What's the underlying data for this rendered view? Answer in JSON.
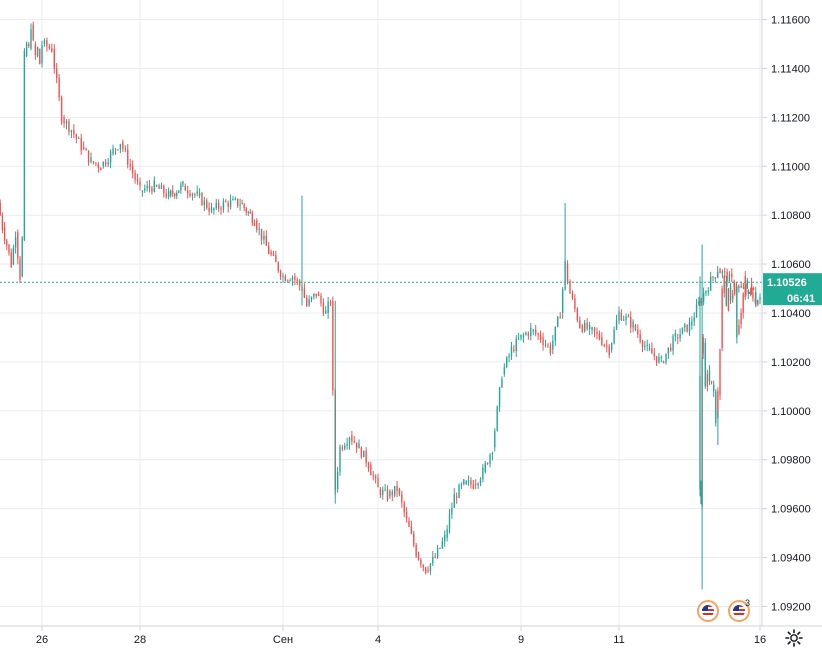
{
  "chart_data": {
    "type": "candlestick",
    "symbol_hint": "",
    "y_ticks": [
      "1.11600",
      "1.11400",
      "1.11200",
      "1.11000",
      "1.10800",
      "1.10600",
      "1.10400",
      "1.10200",
      "1.10000",
      "1.09800",
      "1.09600",
      "1.09400",
      "1.09200"
    ],
    "ylim": [
      1.0912,
      1.1168
    ],
    "x_ticks": [
      "26",
      "28",
      "Сен",
      "4",
      "9",
      "11",
      "16"
    ],
    "x_tick_positions": [
      26.0,
      28.0,
      30.0,
      32.0,
      35.0,
      37.0,
      39.0
    ],
    "current_price": "1.10526",
    "current_price_value": 1.10526,
    "countdown": "06:41",
    "path": [
      [
        24.0,
        1.1085
      ],
      [
        24.2,
        1.1075
      ],
      [
        24.4,
        1.1068
      ],
      [
        24.6,
        1.106
      ],
      [
        24.8,
        1.1073
      ],
      [
        25.0,
        1.1055
      ],
      [
        25.1,
        1.107
      ],
      [
        25.2,
        1.1145
      ],
      [
        25.3,
        1.115
      ],
      [
        25.4,
        1.1148
      ],
      [
        25.5,
        1.1158
      ],
      [
        25.6,
        1.115
      ],
      [
        25.7,
        1.1145
      ],
      [
        25.8,
        1.1148
      ],
      [
        25.9,
        1.1142
      ],
      [
        26.0,
        1.115
      ],
      [
        26.2,
        1.1148
      ],
      [
        26.4,
        1.112
      ],
      [
        26.6,
        1.1115
      ],
      [
        26.8,
        1.1108
      ],
      [
        27.0,
        1.1102
      ],
      [
        27.2,
        1.11
      ],
      [
        27.4,
        1.1105
      ],
      [
        27.6,
        1.111
      ],
      [
        27.8,
        1.11
      ],
      [
        28.0,
        1.109
      ],
      [
        28.2,
        1.1092
      ],
      [
        28.4,
        1.1088
      ],
      [
        28.6,
        1.1092
      ],
      [
        28.8,
        1.1088
      ],
      [
        29.0,
        1.1082
      ],
      [
        29.2,
        1.1085
      ],
      [
        29.4,
        1.1085
      ],
      [
        29.6,
        1.1078
      ],
      [
        29.8,
        1.1065
      ],
      [
        30.0,
        1.1055
      ],
      [
        30.2,
        1.1055
      ],
      [
        30.4,
        1.105
      ],
      [
        30.5,
        1.1043
      ],
      [
        30.7,
        1.1048
      ],
      [
        30.9,
        1.104
      ],
      [
        31.0,
        1.1045
      ],
      [
        31.1,
        1.0968
      ],
      [
        31.2,
        1.0985
      ],
      [
        31.4,
        1.099
      ],
      [
        31.6,
        1.0985
      ],
      [
        31.8,
        1.0978
      ],
      [
        32.0,
        1.0968
      ],
      [
        32.2,
        1.0965
      ],
      [
        32.4,
        1.0968
      ],
      [
        32.6,
        1.0955
      ],
      [
        32.8,
        1.0942
      ],
      [
        33.0,
        1.0935
      ],
      [
        33.2,
        1.094
      ],
      [
        33.4,
        1.0948
      ],
      [
        33.6,
        1.0965
      ],
      [
        33.8,
        1.097
      ],
      [
        34.0,
        1.097
      ],
      [
        34.2,
        1.0975
      ],
      [
        34.4,
        1.0985
      ],
      [
        34.6,
        1.1015
      ],
      [
        34.8,
        1.1025
      ],
      [
        35.0,
        1.103
      ],
      [
        35.2,
        1.1033
      ],
      [
        35.4,
        1.103
      ],
      [
        35.6,
        1.1025
      ],
      [
        35.8,
        1.104
      ],
      [
        35.9,
        1.106
      ],
      [
        36.0,
        1.1048
      ],
      [
        36.2,
        1.1035
      ],
      [
        36.4,
        1.1033
      ],
      [
        36.6,
        1.103
      ],
      [
        36.8,
        1.1025
      ],
      [
        37.0,
        1.104
      ],
      [
        37.2,
        1.1035
      ],
      [
        37.4,
        1.1025
      ],
      [
        37.6,
        1.102
      ],
      [
        37.8,
        1.103
      ],
      [
        38.0,
        1.1035
      ],
      [
        38.2,
        1.1048
      ],
      [
        38.4,
        1.1058
      ],
      [
        38.6,
        1.1053
      ],
      [
        38.8,
        1.1048
      ],
      [
        39.0,
        1.1045
      ],
      [
        39.2,
        1.1043
      ],
      [
        39.4,
        1.105
      ],
      [
        39.6,
        1.1052
      ],
      [
        39.8,
        1.1048
      ],
      [
        40.0,
        1.105
      ],
      [
        40.2,
        1.1055
      ],
      [
        40.4,
        1.1048
      ],
      [
        40.6,
        1.104
      ],
      [
        40.8,
        1.1035
      ],
      [
        41.0,
        1.103
      ],
      [
        41.2,
        1.105
      ],
      [
        41.4,
        1.1048
      ],
      [
        41.6,
        1.1045
      ],
      [
        41.8,
        1.105
      ],
      [
        42.0,
        1.1043
      ],
      [
        42.2,
        1.1055
      ],
      [
        42.4,
        1.105
      ],
      [
        42.6,
        1.1025
      ],
      [
        42.8,
        1.1008
      ],
      [
        43.0,
        1.0995
      ],
      [
        43.2,
        1.1008
      ],
      [
        43.4,
        1.1012
      ],
      [
        43.6,
        1.1012
      ],
      [
        43.8,
        1.1015
      ],
      [
        44.0,
        1.101
      ],
      [
        44.2,
        1.103
      ],
      [
        44.4,
        1.1022
      ],
      [
        44.5,
        1.0962
      ],
      [
        44.6,
        1.0968
      ],
      [
        44.7,
        1.1013
      ]
    ],
    "x_map": [
      [
        26.0,
        42
      ],
      [
        28.0,
        140
      ],
      [
        30.0,
        283
      ],
      [
        32.0,
        378
      ],
      [
        35.0,
        521
      ],
      [
        37.0,
        619
      ],
      [
        39.0,
        760
      ]
    ],
    "x_map_extrapolate": [
      [
        24.0,
        -2
      ],
      [
        44.7,
        700
      ]
    ],
    "spikes": [
      {
        "x": 30.4,
        "high": 1.1088,
        "low": 1.1043
      },
      {
        "x": 31.1,
        "high": 1.1045,
        "low": 1.0962
      },
      {
        "x": 35.9,
        "high": 1.1085,
        "low": 1.1058
      },
      {
        "x": 43.0,
        "high": 1.1,
        "low": 1.0986
      },
      {
        "x": 44.5,
        "high": 1.1068,
        "low": 1.0927
      },
      {
        "x": 44.7,
        "high": 1.1055,
        "low": 1.0965
      }
    ],
    "colors": {
      "up": "#26a69a",
      "down": "#ef5350",
      "grid": "#e9ecf1",
      "axis": "#d1d4dc",
      "price": "#22ab94"
    }
  },
  "events": {
    "count": "3"
  }
}
